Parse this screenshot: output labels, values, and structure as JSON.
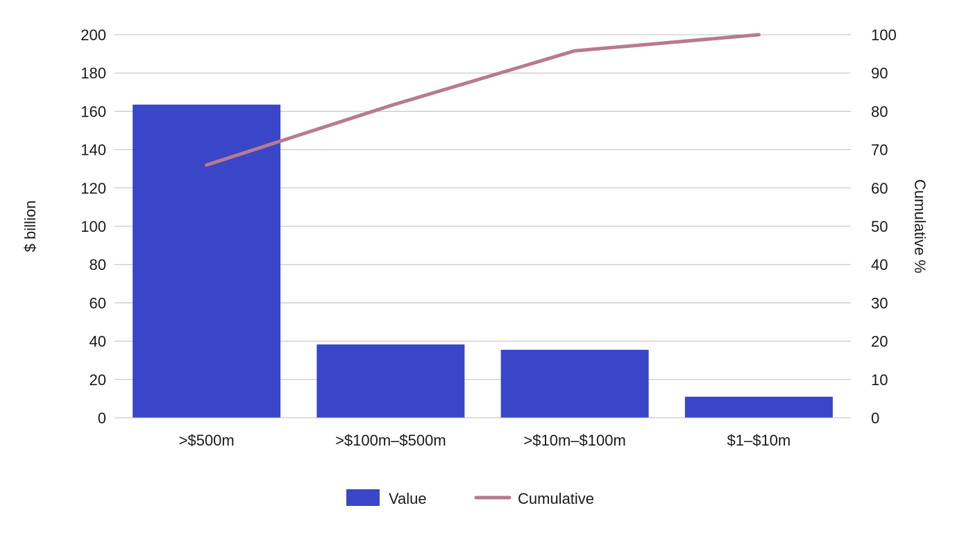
{
  "chart_data": {
    "type": "bar",
    "title": "",
    "categories": [
      ">$500m",
      ">$100m–$500m",
      ">$10m–$100m",
      "$1–$10m"
    ],
    "series": [
      {
        "name": "Value",
        "type": "bar",
        "axis": "left",
        "values": [
          163.5,
          38.3,
          35.5,
          11.0
        ],
        "color": "#3a46c8"
      },
      {
        "name": "Cumulative",
        "type": "line",
        "axis": "right",
        "values": [
          66,
          81.5,
          95.8,
          100
        ],
        "color": "#b87a8f"
      }
    ],
    "ylabel": "$ billion",
    "ylim": [
      0,
      200
    ],
    "yticks": [
      0,
      20,
      40,
      60,
      80,
      100,
      120,
      140,
      160,
      180,
      200
    ],
    "y2label": "Cumulative %",
    "y2lim": [
      0,
      100
    ],
    "y2ticks": [
      0,
      10,
      20,
      30,
      40,
      50,
      60,
      70,
      80,
      90,
      100
    ],
    "grid": true,
    "legend_position": "bottom-center",
    "legend": [
      {
        "label": "Value",
        "kind": "bar",
        "color": "#3a46c8"
      },
      {
        "label": "Cumulative",
        "kind": "line",
        "color": "#b87a8f"
      }
    ]
  }
}
